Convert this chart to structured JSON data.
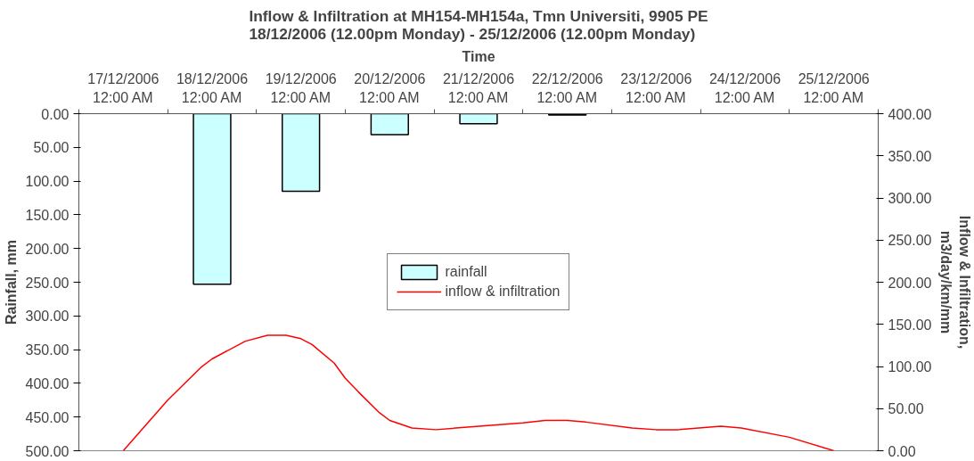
{
  "chart_data": {
    "type": "bar",
    "title": "Inflow & Infiltration at MH154-MH154a, Tmn Universiti, 9905 PE\n18/12/2006 (12.00pm Monday) - 25/12/2006 (12.00pm Monday)",
    "xlabel": "Time",
    "ylabel": "Rainfall, mm",
    "y2label": "Inflow & Infiltration,\nm3/day/km/mm",
    "xlim": [
      "2006-12-16T12:00",
      "2006-12-25T12:00"
    ],
    "xticks": [
      {
        "value": "2006-12-16T12:00",
        "label": null
      },
      {
        "value": "2006-12-17T00:00",
        "label": "17/12/2006\n12:00 AM"
      },
      {
        "value": "2006-12-17T12:00",
        "label": null
      },
      {
        "value": "2006-12-18T00:00",
        "label": "18/12/2006\n12:00 AM"
      },
      {
        "value": "2006-12-18T12:00",
        "label": null
      },
      {
        "value": "2006-12-19T00:00",
        "label": "19/12/2006\n12:00 AM"
      },
      {
        "value": "2006-12-19T12:00",
        "label": null
      },
      {
        "value": "2006-12-20T00:00",
        "label": "20/12/2006\n12:00 AM"
      },
      {
        "value": "2006-12-20T12:00",
        "label": null
      },
      {
        "value": "2006-12-21T00:00",
        "label": "21/12/2006\n12:00 AM"
      },
      {
        "value": "2006-12-21T12:00",
        "label": null
      },
      {
        "value": "2006-12-22T00:00",
        "label": "22/12/2006\n12:00 AM"
      },
      {
        "value": "2006-12-22T12:00",
        "label": null
      },
      {
        "value": "2006-12-23T00:00",
        "label": "23/12/2006\n12:00 AM"
      },
      {
        "value": "2006-12-23T12:00",
        "label": null
      },
      {
        "value": "2006-12-24T00:00",
        "label": "24/12/2006\n12:00 AM"
      },
      {
        "value": "2006-12-24T12:00",
        "label": null
      },
      {
        "value": "2006-12-25T00:00",
        "label": "25/12/2006\n12:00 AM"
      },
      {
        "value": "2006-12-25T12:00",
        "label": null
      }
    ],
    "series": [
      {
        "name": "rainfall",
        "color": "#ccffff",
        "x": [
          "2006-12-18T00:00",
          "2006-12-19T00:00",
          "2006-12-20T00:00",
          "2006-12-21T00:00",
          "2006-12-22T00:00"
        ],
        "values": [
          253,
          115,
          31,
          15,
          2
        ]
      },
      {
        "name": "inflow & infiltration",
        "type": "line",
        "axis": "y2",
        "color": "#ff0000",
        "x": [
          "2006-12-17T00:00",
          "2006-12-17T12:00",
          "2006-12-17T21:00",
          "2006-12-18T00:00",
          "2006-12-18T09:00",
          "2006-12-18T15:00",
          "2006-12-18T20:00",
          "2006-12-19T00:00",
          "2006-12-19T03:00",
          "2006-12-19T09:00",
          "2006-12-19T12:00",
          "2006-12-19T15:30",
          "2006-12-19T21:00",
          "2006-12-20T00:00",
          "2006-12-20T06:00",
          "2006-12-20T12:30",
          "2006-12-21T02:30",
          "2006-12-21T12:00",
          "2006-12-21T18:00",
          "2006-12-22T00:00",
          "2006-12-22T05:00",
          "2006-12-22T17:30",
          "2006-12-23T00:00",
          "2006-12-23T06:00",
          "2006-12-23T17:30",
          "2006-12-23T23:00",
          "2006-12-24T12:00",
          "2006-12-25T00:00"
        ],
        "values": [
          0,
          60,
          99,
          109,
          130,
          137,
          137,
          133,
          126,
          104,
          86,
          70,
          46,
          36,
          27,
          25,
          30,
          33,
          36,
          36,
          34,
          27,
          25,
          25,
          29,
          27,
          16,
          0
        ]
      }
    ],
    "ylim": [
      500,
      0
    ],
    "yticks": [
      {
        "value": 0,
        "label": "0.00"
      },
      {
        "value": 50,
        "label": "50.00"
      },
      {
        "value": 100,
        "label": "100.00"
      },
      {
        "value": 150,
        "label": "150.00"
      },
      {
        "value": 200,
        "label": "200.00"
      },
      {
        "value": 250,
        "label": "250.00"
      },
      {
        "value": 300,
        "label": "300.00"
      },
      {
        "value": 350,
        "label": "350.00"
      },
      {
        "value": 400,
        "label": "400.00"
      },
      {
        "value": 450,
        "label": "450.00"
      },
      {
        "value": 500,
        "label": "500.00"
      }
    ],
    "y2lim": [
      0,
      400
    ],
    "y2ticks": [
      {
        "value": 0,
        "label": "0.00"
      },
      {
        "value": 50,
        "label": "50.00"
      },
      {
        "value": 100,
        "label": "100.00"
      },
      {
        "value": 150,
        "label": "150.00"
      },
      {
        "value": 200,
        "label": "200.00"
      },
      {
        "value": 250,
        "label": "250.00"
      },
      {
        "value": 300,
        "label": "300.00"
      },
      {
        "value": 350,
        "label": "350.00"
      },
      {
        "value": 400,
        "label": "400.00"
      }
    ],
    "legend": "center",
    "grid": false,
    "marker": "none",
    "line_style": "solid"
  }
}
